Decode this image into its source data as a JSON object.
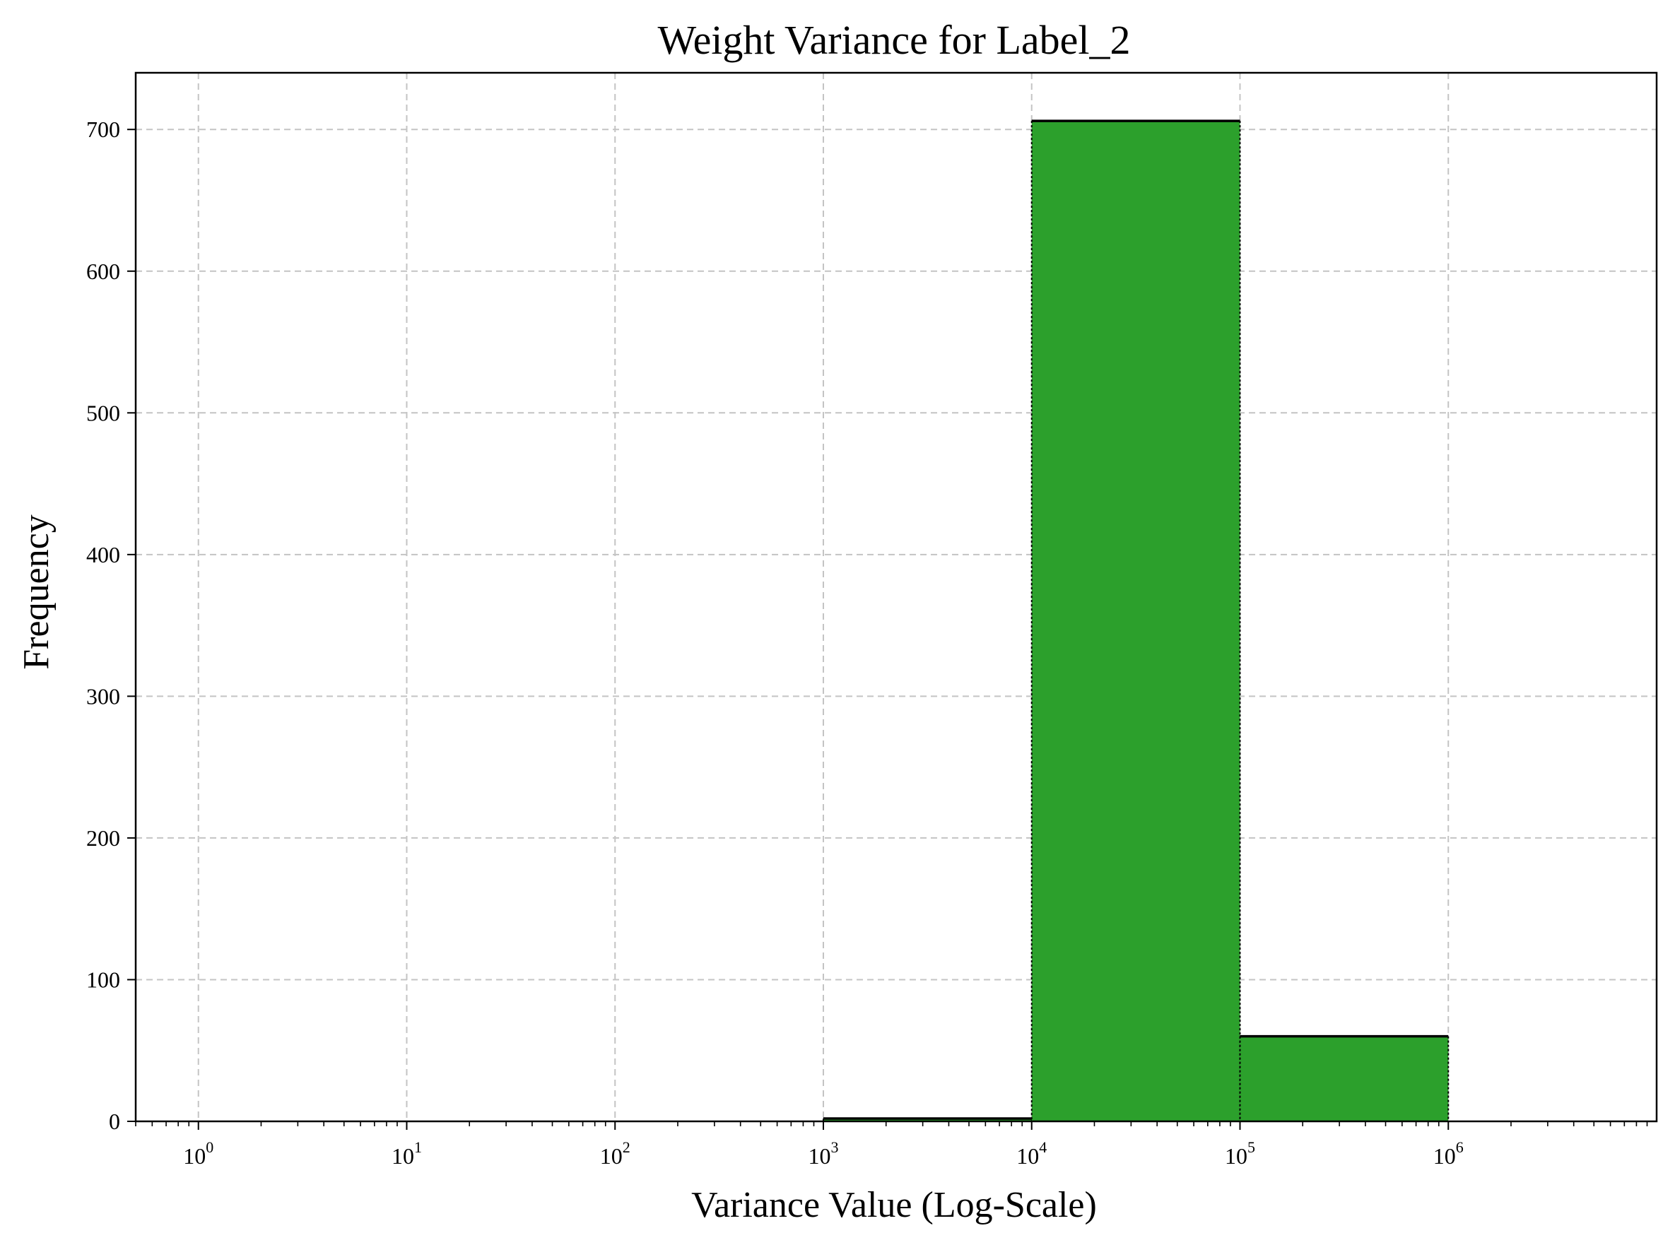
{
  "chart_data": {
    "type": "bar",
    "title": "Weight Variance for Label_2",
    "xlabel": "Variance Value (Log-Scale)",
    "ylabel": "Frequency",
    "x_scale": "log",
    "xlim": [
      0.5,
      10000000
    ],
    "ylim": [
      0,
      740
    ],
    "x_ticks": [
      {
        "value": 1,
        "base": "10",
        "exp": "0"
      },
      {
        "value": 10,
        "base": "10",
        "exp": "1"
      },
      {
        "value": 100,
        "base": "10",
        "exp": "2"
      },
      {
        "value": 1000,
        "base": "10",
        "exp": "3"
      },
      {
        "value": 10000,
        "base": "10",
        "exp": "4"
      },
      {
        "value": 100000,
        "base": "10",
        "exp": "5"
      },
      {
        "value": 1000000,
        "base": "10",
        "exp": "6"
      }
    ],
    "y_ticks": [
      {
        "value": 0,
        "label": "0"
      },
      {
        "value": 100,
        "label": "100"
      },
      {
        "value": 200,
        "label": "200"
      },
      {
        "value": 300,
        "label": "300"
      },
      {
        "value": 400,
        "label": "400"
      },
      {
        "value": 500,
        "label": "500"
      },
      {
        "value": 600,
        "label": "600"
      },
      {
        "value": 700,
        "label": "700"
      }
    ],
    "bins": [
      {
        "x0": 1,
        "x1": 10,
        "count": 0
      },
      {
        "x0": 10,
        "x1": 100,
        "count": 0
      },
      {
        "x0": 100,
        "x1": 1000,
        "count": 0
      },
      {
        "x0": 1000,
        "x1": 10000,
        "count": 2
      },
      {
        "x0": 10000,
        "x1": 100000,
        "count": 706
      },
      {
        "x0": 100000,
        "x1": 1000000,
        "count": 60
      }
    ],
    "grid": true,
    "bar_color": "#2ca02c",
    "edge_color": "#000000"
  }
}
